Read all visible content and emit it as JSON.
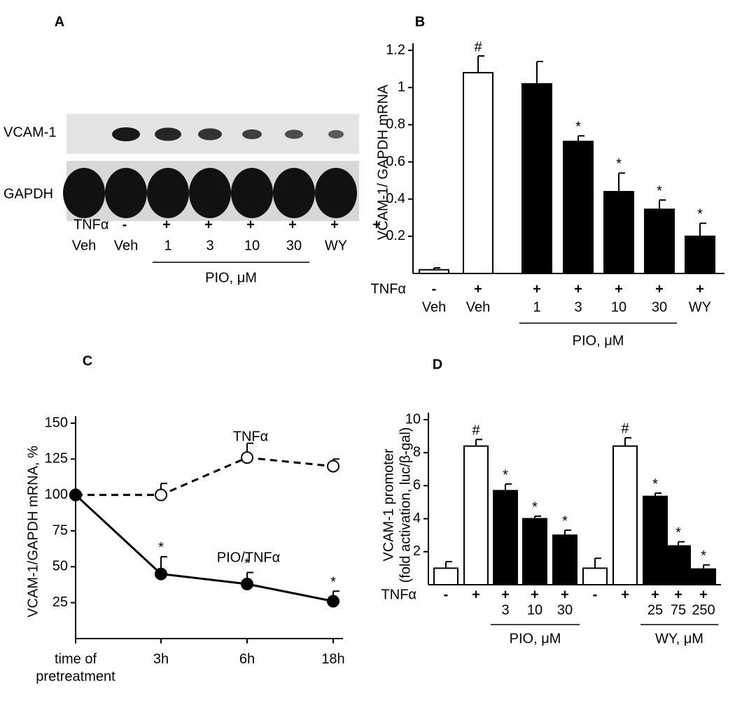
{
  "panel_a": {
    "label": "A",
    "rows": [
      "VCAM-1",
      "GAPDH"
    ],
    "treatment": "TNFα",
    "signs": [
      "-",
      "+",
      "+",
      "+",
      "+",
      "+",
      "+"
    ],
    "lanes": [
      "Veh",
      "Veh",
      "1",
      "3",
      "10",
      "30",
      "WY"
    ],
    "group": "PIO, μM"
  },
  "chart_data": [
    {
      "type": "bar",
      "label": "B",
      "ylabel": "VCAM-1/ GAPDH mRNA",
      "categories": [
        "Veh",
        "Veh",
        "1",
        "3",
        "10",
        "30",
        "WY"
      ],
      "values": [
        0.02,
        1.08,
        1.02,
        0.71,
        0.44,
        0.345,
        0.2
      ],
      "errors": [
        0.01,
        0.09,
        0.12,
        0.03,
        0.1,
        0.05,
        0.07
      ],
      "markers": [
        null,
        "#",
        null,
        "*",
        "*",
        "*",
        "*"
      ],
      "colors": [
        "#ffffff",
        "#ffffff",
        "#000000",
        "#000000",
        "#000000",
        "#000000",
        "#000000"
      ],
      "treatment": "TNFα",
      "signs": [
        "-",
        "+",
        "+",
        "+",
        "+",
        "+",
        "+"
      ],
      "groups": [
        "PIO, μM"
      ],
      "ylim": [
        0,
        1.2
      ],
      "yticks": [
        0.2,
        0.4,
        0.6,
        0.8,
        1,
        1.2
      ]
    },
    {
      "type": "line",
      "label": "C",
      "ylabel": "VCAM-1/GAPDH mRNA, %",
      "xlabel": [
        "time of",
        "pretreatment"
      ],
      "categories": [
        null,
        "3h",
        "6h",
        "18h"
      ],
      "series": [
        {
          "name": "TNFα",
          "color": "#000000",
          "dashed": true,
          "filled": false,
          "values": [
            100,
            100,
            126,
            120
          ],
          "errors": [
            null,
            8,
            10,
            5
          ],
          "markers": [
            null,
            null,
            null,
            null
          ]
        },
        {
          "name": "PIO/TNFα",
          "color": "#000000",
          "dashed": false,
          "filled": true,
          "values": [
            100,
            45,
            38,
            26
          ],
          "errors": [
            null,
            12,
            8,
            7
          ],
          "markers": [
            null,
            "*",
            "*",
            "*"
          ]
        }
      ],
      "ylim": [
        0,
        150
      ],
      "yticks": [
        25,
        50,
        75,
        100,
        125,
        150
      ]
    },
    {
      "type": "bar",
      "label": "D",
      "ylabel": [
        "VCAM-1 promoter",
        "(fold activation, luc/β-gal)"
      ],
      "categories": [
        null,
        null,
        "3",
        "10",
        "30",
        null,
        null,
        "25",
        "75",
        "250"
      ],
      "values": [
        1.0,
        8.4,
        5.7,
        4.0,
        3.0,
        1.0,
        8.4,
        5.35,
        2.35,
        0.95
      ],
      "errors": [
        0.4,
        0.4,
        0.4,
        0.15,
        0.3,
        0.6,
        0.5,
        0.2,
        0.25,
        0.25
      ],
      "markers": [
        null,
        "#",
        "*",
        "*",
        "*",
        null,
        "#",
        "*",
        "*",
        "*"
      ],
      "colors": [
        "#ffffff",
        "#ffffff",
        "#000000",
        "#000000",
        "#000000",
        "#ffffff",
        "#ffffff",
        "#000000",
        "#000000",
        "#000000"
      ],
      "treatment": "TNFα",
      "signs": [
        "-",
        "+",
        "+",
        "+",
        "+",
        "-",
        "+",
        "+",
        "+",
        "+"
      ],
      "groups": [
        "PIO, μM",
        "WY, μM"
      ],
      "ylim": [
        0,
        10
      ],
      "yticks": [
        2,
        4,
        6,
        8,
        10
      ]
    }
  ]
}
